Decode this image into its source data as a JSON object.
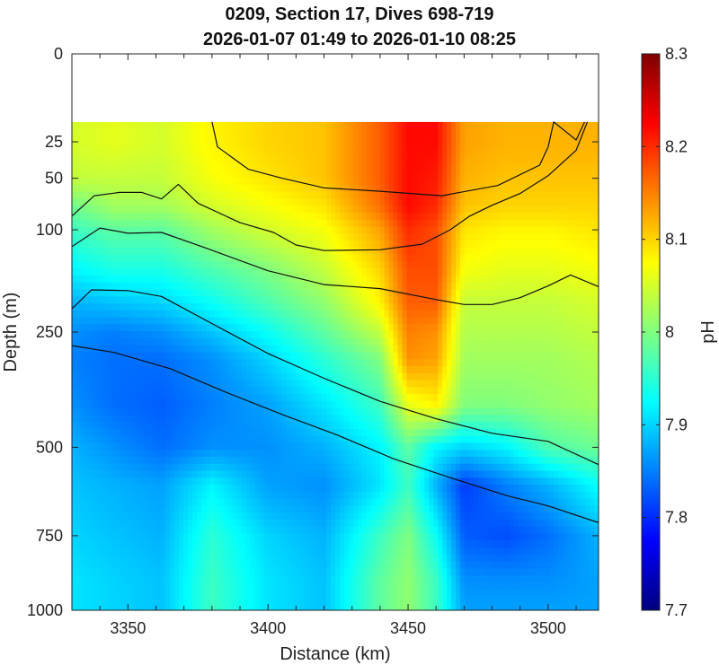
{
  "chart_data": {
    "type": "heatmap",
    "title": "0209, Section 17, Dives 698-719",
    "subtitle": "2026-01-07 01:49 to 2026-01-10 08:25",
    "xlabel": "Distance (km)",
    "ylabel": "Depth (m)",
    "colorbar_label": "pH",
    "xlim": [
      3330,
      3518
    ],
    "ylim": [
      0,
      1000
    ],
    "y_scale": "sqrt",
    "y_reversed": true,
    "data_top_depth": 15,
    "x_ticks": [
      3350,
      3400,
      3450,
      3500
    ],
    "y_ticks": [
      0,
      25,
      50,
      100,
      250,
      500,
      750,
      1000
    ],
    "clim": [
      7.7,
      8.3
    ],
    "colorbar_ticks": [
      "7.7",
      "7.8",
      "7.9",
      "8",
      "8.1",
      "8.2",
      "8.3"
    ],
    "colormap": "jet",
    "grid": false,
    "distance": [
      3330,
      3345,
      3362,
      3380,
      3400,
      3420,
      3440,
      3450,
      3460,
      3470,
      3485,
      3500,
      3518
    ],
    "depth": [
      15,
      25,
      50,
      75,
      100,
      150,
      200,
      250,
      300,
      400,
      500,
      600,
      750,
      900,
      1000
    ],
    "ph": [
      [
        8.05,
        8.06,
        8.05,
        8.08,
        8.1,
        8.11,
        8.17,
        8.22,
        8.22,
        8.13,
        8.12,
        8.12,
        8.12
      ],
      [
        8.05,
        8.06,
        8.05,
        8.08,
        8.1,
        8.11,
        8.17,
        8.22,
        8.22,
        8.13,
        8.12,
        8.12,
        8.12
      ],
      [
        8.04,
        8.04,
        8.04,
        8.07,
        8.09,
        8.11,
        8.17,
        8.22,
        8.21,
        8.12,
        8.11,
        8.11,
        8.11
      ],
      [
        7.99,
        8.02,
        8.02,
        8.05,
        8.07,
        8.09,
        8.16,
        8.22,
        8.2,
        8.11,
        8.1,
        8.1,
        8.1
      ],
      [
        7.96,
        7.98,
        7.98,
        8.02,
        8.05,
        8.07,
        8.13,
        8.2,
        8.18,
        8.09,
        8.08,
        8.08,
        8.09
      ],
      [
        7.92,
        7.94,
        7.94,
        7.97,
        8.0,
        8.04,
        8.1,
        8.18,
        8.18,
        8.07,
        8.06,
        8.06,
        8.07
      ],
      [
        7.88,
        7.89,
        7.9,
        7.93,
        7.97,
        8.01,
        8.08,
        8.17,
        8.17,
        8.04,
        8.04,
        8.04,
        8.05
      ],
      [
        7.86,
        7.85,
        7.86,
        7.89,
        7.93,
        7.98,
        8.04,
        8.15,
        8.14,
        8.03,
        8.03,
        8.03,
        8.04
      ],
      [
        7.85,
        7.84,
        7.84,
        7.86,
        7.9,
        7.95,
        8.0,
        8.14,
        8.13,
        8.02,
        8.02,
        8.02,
        8.03
      ],
      [
        7.86,
        7.84,
        7.83,
        7.85,
        7.87,
        7.91,
        7.96,
        8.06,
        8.08,
        8.0,
        8.0,
        8.01,
        8.02
      ],
      [
        7.88,
        7.86,
        7.84,
        7.86,
        7.86,
        7.88,
        7.92,
        7.98,
        7.92,
        7.9,
        7.92,
        7.97,
        7.99
      ],
      [
        7.89,
        7.88,
        7.87,
        7.92,
        7.87,
        7.86,
        7.91,
        7.96,
        7.88,
        7.81,
        7.85,
        7.88,
        7.93
      ],
      [
        7.9,
        7.89,
        7.88,
        7.95,
        7.9,
        7.88,
        7.96,
        8.0,
        7.93,
        7.83,
        7.82,
        7.84,
        7.88
      ],
      [
        7.91,
        7.9,
        7.89,
        7.96,
        7.91,
        7.89,
        7.98,
        8.01,
        7.96,
        7.86,
        7.86,
        7.86,
        7.87
      ],
      [
        7.91,
        7.9,
        7.89,
        7.96,
        7.91,
        7.89,
        7.98,
        8.01,
        7.96,
        7.87,
        7.87,
        7.87,
        7.87
      ]
    ],
    "contours": [
      {
        "x": [
          3380,
          3382,
          3393,
          3405,
          3420,
          3440,
          3462,
          3482,
          3497,
          3500,
          3502,
          3510,
          3513
        ],
        "depth": [
          15,
          28,
          43,
          50,
          58,
          61,
          65,
          56,
          40,
          28,
          15,
          24,
          15
        ]
      },
      {
        "x": [
          3330,
          3338,
          3347,
          3355,
          3362,
          3368,
          3375,
          3390,
          3402,
          3410,
          3420,
          3440,
          3455,
          3465,
          3472,
          3480,
          3490,
          3500,
          3510,
          3514
        ],
        "depth": [
          85,
          65,
          62,
          62,
          68,
          55,
          72,
          92,
          103,
          118,
          125,
          124,
          117,
          100,
          85,
          74,
          63,
          48,
          30,
          15
        ]
      },
      {
        "x": [
          3330,
          3340,
          3350,
          3362,
          3378,
          3400,
          3420,
          3440,
          3460,
          3470,
          3480,
          3490,
          3500,
          3508,
          3518
        ],
        "depth": [
          120,
          98,
          104,
          103,
          122,
          152,
          172,
          178,
          195,
          203,
          203,
          192,
          174,
          158,
          175
        ]
      },
      {
        "x": [
          3330,
          3337,
          3350,
          3362,
          3380,
          3400,
          3420,
          3440,
          3460,
          3480,
          3500,
          3518
        ],
        "depth": [
          210,
          180,
          181,
          190,
          235,
          290,
          340,
          390,
          430,
          465,
          485,
          545
        ]
      },
      {
        "x": [
          3330,
          3345,
          3365,
          3385,
          3405,
          3425,
          3445,
          3465,
          3485,
          3500,
          3518
        ],
        "depth": [
          275,
          288,
          320,
          370,
          420,
          470,
          530,
          580,
          630,
          660,
          710
        ]
      }
    ]
  }
}
